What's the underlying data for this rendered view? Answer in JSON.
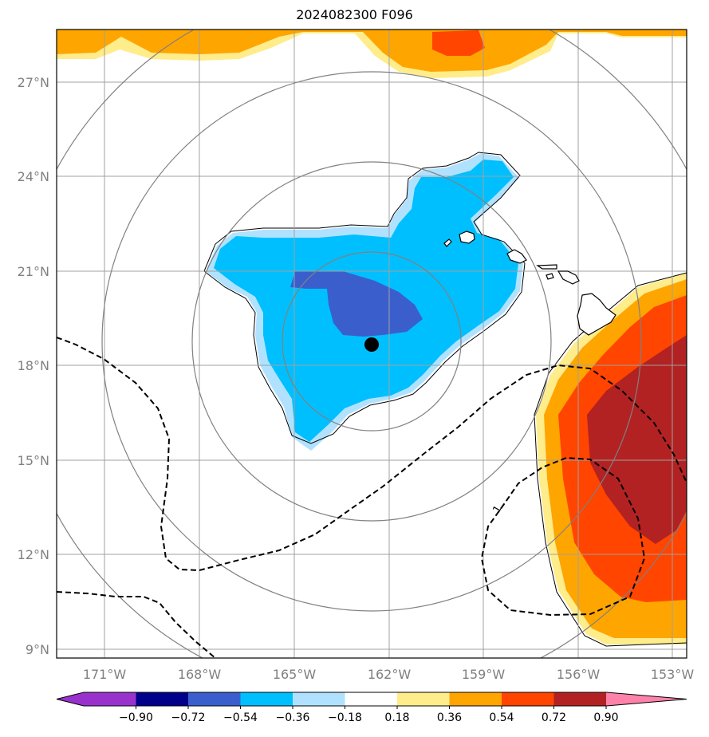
{
  "title": "2024082300 F096",
  "lat_labels": [
    "27°N",
    "24°N",
    "21°N",
    "18°N",
    "15°N",
    "12°N",
    "9°N"
  ],
  "lon_labels": [
    "171°W",
    "168°W",
    "165°W",
    "162°W",
    "159°W",
    "156°W",
    "153°W"
  ],
  "map_extent": {
    "lon_min": -172.5,
    "lon_max": -152.5,
    "lat_min": 8.7,
    "lat_max": 28.5
  },
  "storm_center": {
    "lon": -162.6,
    "lat": 18.7
  },
  "range_rings_deg": [
    3,
    6,
    9,
    12
  ],
  "contour_label": "1",
  "colorbar": {
    "tick_labels": [
      "−0.90",
      "−0.72",
      "−0.54",
      "−0.36",
      "−0.18",
      "0.18",
      "0.36",
      "0.54",
      "0.72",
      "0.90"
    ],
    "colors": [
      "#9932cc",
      "#00008b",
      "#3a5fcd",
      "#00bfff",
      "#b0e2ff",
      "#ffffff",
      "#ffec8b",
      "#ffa500",
      "#ff4500",
      "#b22222",
      "#ff82ab"
    ],
    "extend": "both"
  },
  "colors": {
    "light_blue": "#b0e2ff",
    "cyan": "#00bfff",
    "royal_blue": "#3a5fcd",
    "light_yellow": "#ffec8b",
    "orange": "#ffa500",
    "orange_red": "#ff4500",
    "firebrick": "#b22222",
    "gridline": "#a0a0a0",
    "ring": "#808080"
  }
}
